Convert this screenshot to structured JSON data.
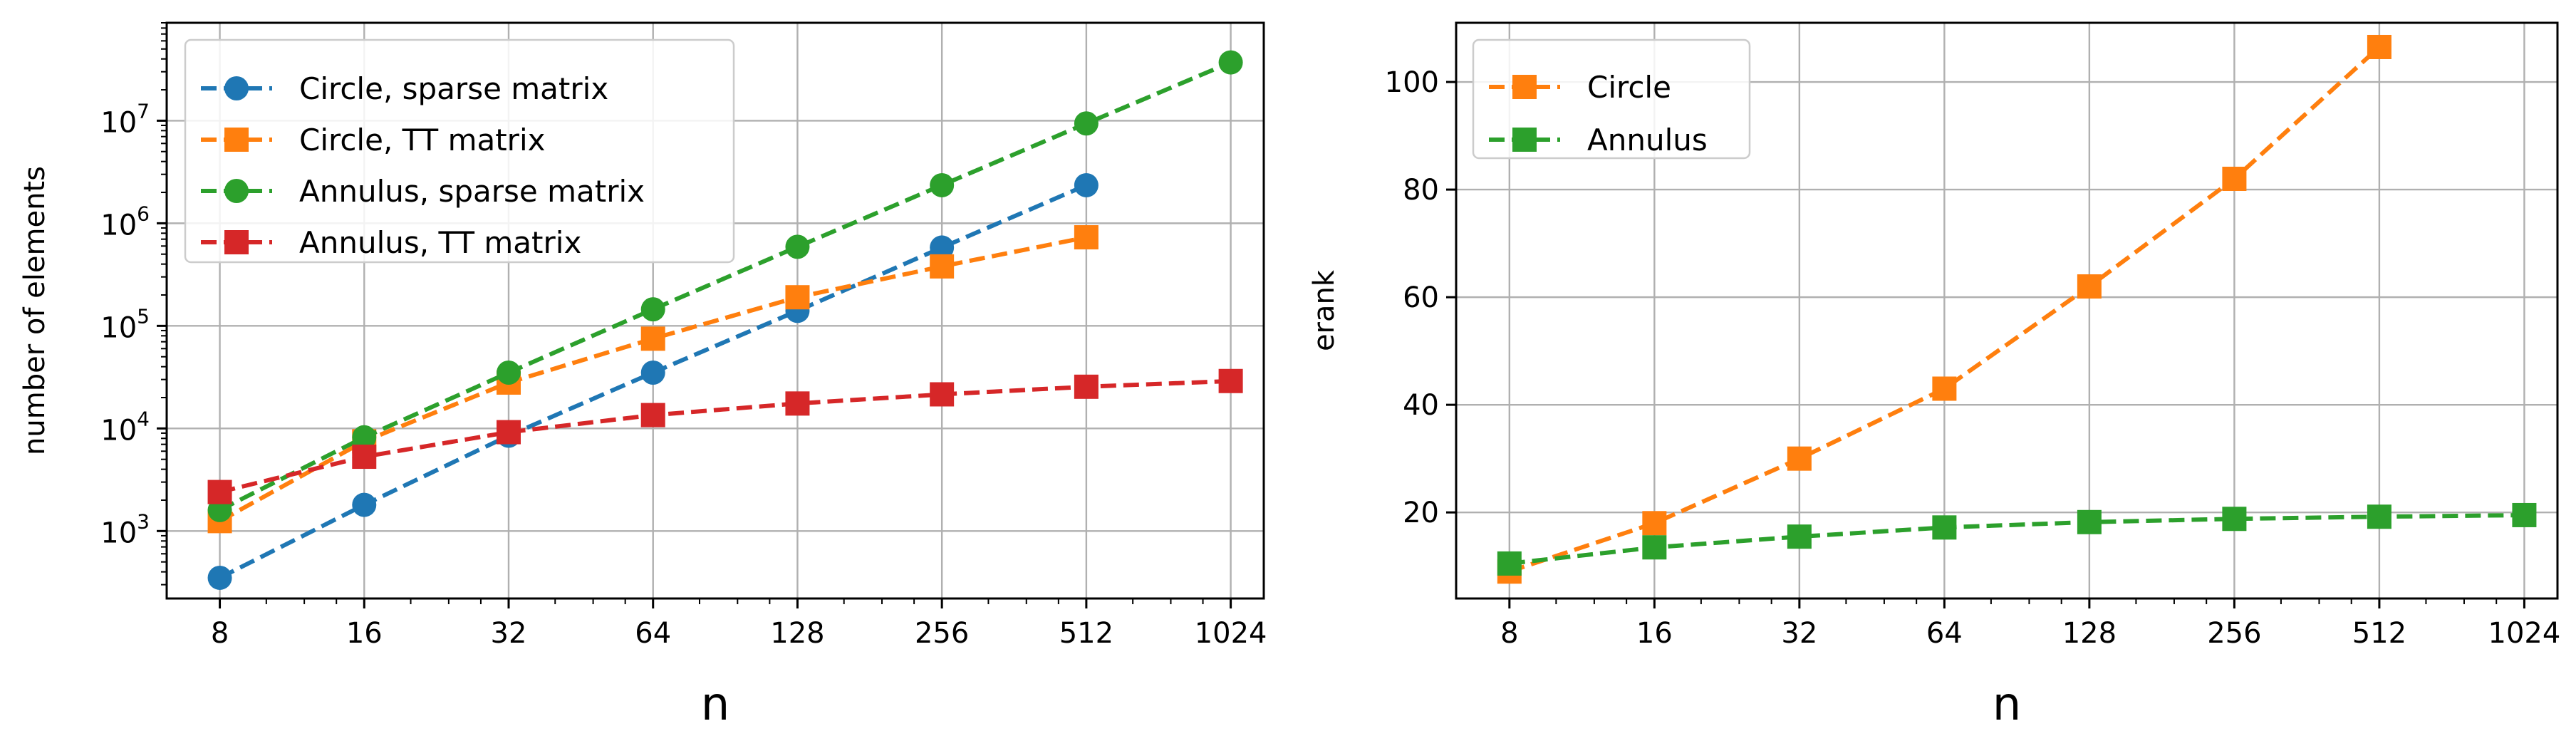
{
  "chart_data": [
    {
      "type": "line",
      "xscale": "log2",
      "yscale": "log10",
      "x": [
        8,
        16,
        32,
        64,
        128,
        256,
        512,
        1024
      ],
      "xticks": [
        "8",
        "16",
        "32",
        "64",
        "128",
        "256",
        "512",
        "1024"
      ],
      "yticks": [
        {
          "base": "10",
          "exp": "3",
          "value": 1000
        },
        {
          "base": "10",
          "exp": "4",
          "value": 10000
        },
        {
          "base": "10",
          "exp": "5",
          "value": 100000
        },
        {
          "base": "10",
          "exp": "6",
          "value": 1000000
        },
        {
          "base": "10",
          "exp": "7",
          "value": 10000000
        }
      ],
      "xlabel": "n",
      "ylabel": "number of elements",
      "ylim": [
        220,
        90000000
      ],
      "grid": true,
      "legend_position": "top-left",
      "series": [
        {
          "name": "Circle, sparse matrix",
          "color": "#1f77b4",
          "marker": "circle",
          "x": [
            8,
            16,
            32,
            64,
            128,
            256,
            512
          ],
          "values": [
            350,
            1800,
            8500,
            35000,
            140000,
            580000,
            2350000
          ]
        },
        {
          "name": "Circle, TT matrix",
          "color": "#ff7f0e",
          "marker": "square",
          "x": [
            8,
            16,
            32,
            64,
            128,
            256,
            512
          ],
          "values": [
            1250,
            7500,
            28000,
            75000,
            190000,
            380000,
            730000
          ]
        },
        {
          "name": "Annulus, sparse matrix",
          "color": "#2ca02c",
          "marker": "circle",
          "x": [
            8,
            16,
            32,
            64,
            128,
            256,
            512,
            1024
          ],
          "values": [
            1600,
            8200,
            35000,
            145000,
            590000,
            2350000,
            9400000,
            37000000
          ]
        },
        {
          "name": "Annulus, TT matrix",
          "color": "#d62728",
          "marker": "square",
          "x": [
            8,
            16,
            32,
            64,
            128,
            256,
            512,
            1024
          ],
          "values": [
            2400,
            5300,
            9200,
            13500,
            17500,
            21500,
            25500,
            29000
          ]
        }
      ]
    },
    {
      "type": "line",
      "xscale": "log2",
      "yscale": "linear",
      "x": [
        8,
        16,
        32,
        64,
        128,
        256,
        512,
        1024
      ],
      "xticks": [
        "8",
        "16",
        "32",
        "64",
        "128",
        "256",
        "512",
        "1024"
      ],
      "yticks": [
        "20",
        "40",
        "60",
        "80",
        "100"
      ],
      "xlabel": "n",
      "ylabel": "erank",
      "ylim": [
        4,
        111
      ],
      "grid": true,
      "legend_position": "top-left",
      "series": [
        {
          "name": "Circle",
          "color": "#ff7f0e",
          "marker": "square",
          "x": [
            8,
            16,
            32,
            64,
            128,
            256,
            512
          ],
          "values": [
            9,
            18,
            30,
            43,
            62,
            82,
            106.5
          ]
        },
        {
          "name": "Annulus",
          "color": "#2ca02c",
          "marker": "square",
          "x": [
            8,
            16,
            32,
            64,
            128,
            256,
            512,
            1024
          ],
          "values": [
            10.5,
            13.5,
            15.5,
            17.2,
            18.2,
            18.8,
            19.2,
            19.5
          ]
        }
      ]
    }
  ]
}
